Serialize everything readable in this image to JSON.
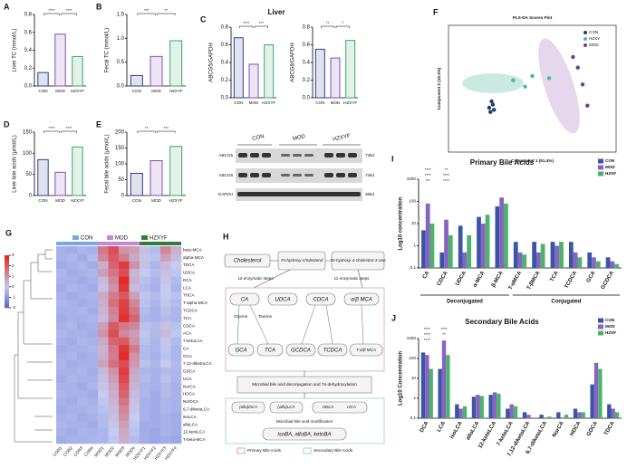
{
  "liver_title": "Liver",
  "blot": {
    "panel_groups": [
      "CON",
      "MOD",
      "HZXYF"
    ],
    "proteins": [
      "ABCG5",
      "ABCG8",
      "GAPDH"
    ],
    "sizes": [
      "73kd",
      "73kd",
      "36kd"
    ]
  },
  "pathway": {
    "panel": "H",
    "top": [
      "Cholesterol",
      "7α-hydroxy-cholesterol",
      "7α-hydroxy-4-cholesten-3-one"
    ],
    "steps": [
      "12 enzymatic steps",
      "11 enzymatic steps"
    ],
    "primary": [
      "CA",
      "UDCA",
      "CDCA",
      "α/β MCA"
    ],
    "conjugated": [
      "GCA",
      "TCA",
      "GCDCA",
      "TCDCA",
      "T-α/β MCA"
    ],
    "reagents": [
      "Glycine",
      "Taurine"
    ],
    "deconjugation": "Microbial bile acid deconjugation and 7α-dehydroxylation",
    "secondary": [
      "(allo)DCA",
      "(allo)LCA",
      "HDCA",
      "HCA"
    ],
    "modification": "Microbial bile acid modification",
    "modified": "isoBA, alloBA, ketoBA",
    "legend": [
      "Primary Bile Acids",
      "Secondary Bile Acids"
    ]
  },
  "chart_data": [
    {
      "type": "bar",
      "panel": "A",
      "ylabel": "Liver TC (mmol/L)",
      "categories": [
        "CON",
        "MOD",
        "HZXYF"
      ],
      "values": [
        0.15,
        0.58,
        0.33
      ],
      "colors": [
        "#2d3f8f",
        "#8250b8",
        "#3aa86b"
      ],
      "ylim": [
        0,
        0.8
      ],
      "yticks": [
        {
          "value": 0,
          "label": "0.0"
        },
        0.2,
        0.4,
        0.6,
        0.8
      ],
      "annotations": [
        "****",
        "****"
      ]
    },
    {
      "type": "bar",
      "panel": "B",
      "ylabel": "Fecal TC (mmol/L)",
      "categories": [
        "CON",
        "MOD",
        "HZXYF"
      ],
      "values": [
        0.22,
        0.62,
        0.95
      ],
      "colors": [
        "#2d3f8f",
        "#8250b8",
        "#3aa86b"
      ],
      "ylim": [
        0,
        1.5
      ],
      "yticks": [
        {
          "value": 0,
          "label": "0.0"
        },
        0.5,
        {
          "value": 1,
          "label": "1.0"
        },
        1.5
      ],
      "annotations": [
        "***",
        "**"
      ]
    },
    {
      "type": "bar",
      "panel": "C",
      "ylabel": "ABCG5/GAPDH",
      "categories": [
        "CON",
        "MOD",
        "HZXYF"
      ],
      "values": [
        0.68,
        0.38,
        0.6
      ],
      "colors": [
        "#2d3f8f",
        "#8250b8",
        "#3aa86b"
      ],
      "ylim": [
        0,
        0.8
      ],
      "yticks": [
        {
          "value": 0,
          "label": "0.0"
        },
        0.2,
        0.4,
        0.6,
        0.8
      ],
      "annotations": [
        "****",
        "***"
      ]
    },
    {
      "type": "bar",
      "ylabel": "ABCG8/GAPDH",
      "categories": [
        "CON",
        "MOD",
        "HZXYF"
      ],
      "values": [
        0.55,
        0.45,
        0.65
      ],
      "colors": [
        "#2d3f8f",
        "#8250b8",
        "#3aa86b"
      ],
      "ylim": [
        0,
        0.8
      ],
      "yticks": [
        {
          "value": 0,
          "label": "0.0"
        },
        0.2,
        0.4,
        0.6,
        0.8
      ],
      "annotations": [
        "**",
        "*"
      ]
    },
    {
      "type": "bar",
      "panel": "D",
      "ylabel": "Liver bile acids (μmol/L)",
      "categories": [
        "CON",
        "MOD",
        "HZXYF"
      ],
      "values": [
        85,
        55,
        115
      ],
      "colors": [
        "#2d3f8f",
        "#8250b8",
        "#3aa86b"
      ],
      "ylim": [
        0,
        150
      ],
      "yticks": [
        0,
        50,
        100,
        150
      ],
      "annotations": [
        "****",
        "****"
      ]
    },
    {
      "type": "bar",
      "panel": "E",
      "ylabel": "Fecal bile acids (μmol/L)",
      "categories": [
        "CON",
        "MOD",
        "HZXYF"
      ],
      "values": [
        70,
        110,
        155
      ],
      "colors": [
        "#2d3f8f",
        "#8250b8",
        "#3aa86b"
      ],
      "ylim": [
        0,
        200
      ],
      "yticks": [
        0,
        50,
        100,
        150,
        200
      ],
      "annotations": [
        "**",
        "***"
      ]
    },
    {
      "type": "scatter",
      "panel": "F",
      "title": "PLS-DA Scores Plot",
      "xlabel": "Component 1 (51.4%)",
      "ylabel": "Component 2 (10.3%)",
      "xlim": [
        -3,
        4
      ],
      "ylim": [
        -3,
        3
      ],
      "legend": "upper right",
      "series": [
        {
          "name": "CON",
          "color": "#1f3b73",
          "x": [
            -1.2,
            -1.3,
            -1.1,
            -1.25,
            -1.15
          ],
          "values": [
            -0.6,
            -0.9,
            -1.0,
            -1.1,
            -0.75
          ]
        },
        {
          "name": "HZXY",
          "color": "#4fb89a",
          "x": [
            -0.3,
            0.5,
            1.2,
            0.2
          ],
          "values": [
            0.4,
            0.6,
            0.5,
            0.1
          ]
        },
        {
          "name": "MOD",
          "color": "#6a3d8f",
          "x": [
            2.2,
            2.6,
            2.8,
            2.4
          ],
          "values": [
            1.5,
            0.2,
            -0.8,
            1.0
          ]
        }
      ]
    },
    {
      "type": "heatmap",
      "panel": "G",
      "rows": [
        "beta-MCA",
        "alpha-MCA",
        "TDCA",
        "UDCA",
        "DCA",
        "LCA",
        "THCA",
        "T-alpha-MCA",
        "TCDCA",
        "TCA",
        "CDCA",
        "ACA",
        "7-ketoLCA",
        "CA",
        "GCA",
        "7,12-diketoLCA",
        "GDCA",
        "UCA",
        "NorCA",
        "HDCA",
        "NorDCA",
        "6,7-diketoLCA",
        "isoLCA",
        "alloLCA",
        "12-ketoLCA",
        "T-beta-MCA"
      ],
      "columns": [
        "CON1",
        "CON2",
        "CON3",
        "CON4",
        "MOD1",
        "MOD2",
        "MOD3",
        "MOD4",
        "HZXYF1",
        "HZXYF2",
        "HZXYF3",
        "HZXYF4"
      ],
      "column_groups": [
        {
          "name": "CON",
          "color": "#7ba7e0"
        },
        {
          "name": "MOD",
          "color": "#c38ad3"
        },
        {
          "name": "HZXYF",
          "color": "#2f7d3a"
        }
      ],
      "clim": [
        -2,
        3
      ],
      "colormap": [
        "#4f63d2",
        "#c5cbf0",
        "#e3211c"
      ],
      "colorbar_ticks": [
        3,
        2,
        1,
        0,
        -1,
        -2
      ],
      "values": [
        [
          -0.5,
          -0.6,
          -0.4,
          -0.5,
          1.5,
          2.2,
          1.0,
          0.8,
          0.2,
          -0.3,
          1.2,
          0.5
        ],
        [
          -0.5,
          -0.4,
          -0.6,
          -0.3,
          1.2,
          2.0,
          1.4,
          0.6,
          0.1,
          -0.2,
          0.8,
          0.3
        ],
        [
          -0.6,
          -0.5,
          -0.4,
          -0.6,
          0.5,
          1.8,
          2.5,
          1.0,
          0.2,
          -0.4,
          0.3,
          0.0
        ],
        [
          -0.4,
          -0.6,
          -0.5,
          -0.4,
          0.8,
          1.5,
          2.2,
          0.4,
          0.0,
          -0.3,
          0.2,
          -0.1
        ],
        [
          -0.5,
          -0.5,
          -0.6,
          -0.5,
          0.3,
          1.2,
          2.8,
          0.5,
          -0.2,
          -0.4,
          0.1,
          -0.3
        ],
        [
          -0.6,
          -0.4,
          -0.5,
          -0.6,
          0.2,
          1.0,
          2.6,
          0.3,
          -0.3,
          -0.5,
          0.0,
          -0.4
        ],
        [
          -0.5,
          -0.6,
          -0.5,
          -0.4,
          0.6,
          1.4,
          2.0,
          0.8,
          -0.1,
          -0.3,
          0.0,
          -0.2
        ],
        [
          -0.4,
          -0.5,
          -0.6,
          -0.5,
          0.5,
          1.6,
          2.4,
          1.2,
          -0.2,
          -0.4,
          -0.1,
          -0.3
        ],
        [
          -0.5,
          -0.5,
          -0.4,
          -0.6,
          0.4,
          1.3,
          2.5,
          1.5,
          -0.3,
          -0.5,
          -0.2,
          -0.4
        ],
        [
          -0.6,
          -0.5,
          -0.5,
          -0.4,
          0.3,
          1.2,
          2.7,
          1.8,
          -0.4,
          -0.5,
          -0.3,
          -0.4
        ],
        [
          -0.5,
          -0.4,
          -0.6,
          -0.5,
          0.8,
          2.0,
          1.5,
          1.2,
          -0.2,
          -0.3,
          0.2,
          -0.2
        ],
        [
          -0.4,
          -0.5,
          -0.5,
          -0.6,
          1.0,
          2.2,
          1.2,
          0.8,
          -0.1,
          -0.3,
          0.3,
          -0.1
        ],
        [
          -0.5,
          -0.6,
          -0.4,
          -0.5,
          0.6,
          1.8,
          2.0,
          1.0,
          -0.2,
          -0.4,
          0.1,
          -0.3
        ],
        [
          -0.6,
          -0.5,
          -0.5,
          -0.4,
          0.4,
          1.5,
          2.6,
          1.4,
          -0.3,
          -0.4,
          -0.1,
          -0.4
        ],
        [
          -0.5,
          -0.4,
          -0.6,
          -0.5,
          0.5,
          1.4,
          2.8,
          1.0,
          -0.3,
          -0.5,
          -0.2,
          -0.4
        ],
        [
          -0.4,
          -0.6,
          -0.5,
          -0.5,
          0.7,
          1.6,
          2.2,
          0.9,
          -0.2,
          -0.4,
          0.0,
          -0.3
        ],
        [
          -0.5,
          -0.5,
          -0.4,
          -0.6,
          0.3,
          1.0,
          2.5,
          0.6,
          -0.4,
          -0.5,
          -0.3,
          -0.4
        ],
        [
          -0.6,
          -0.4,
          -0.5,
          -0.5,
          0.2,
          0.8,
          2.3,
          0.5,
          -0.3,
          -0.5,
          -0.2,
          -0.4
        ],
        [
          -0.5,
          -0.5,
          -0.6,
          -0.4,
          0.1,
          0.6,
          2.0,
          0.4,
          -0.4,
          -0.5,
          -0.3,
          -0.5
        ],
        [
          -0.4,
          -0.5,
          -0.5,
          -0.6,
          0.0,
          0.5,
          1.8,
          0.3,
          -0.4,
          -0.6,
          -0.3,
          -0.5
        ],
        [
          -0.5,
          -0.6,
          -0.4,
          -0.5,
          -0.1,
          0.4,
          1.5,
          0.2,
          -0.5,
          -0.6,
          -0.4,
          -0.5
        ],
        [
          -0.6,
          -0.5,
          -0.5,
          -0.4,
          -0.2,
          0.3,
          1.2,
          0.1,
          -0.5,
          -0.6,
          -0.4,
          -0.5
        ],
        [
          -0.5,
          -0.4,
          -0.6,
          -0.5,
          -0.3,
          0.2,
          1.0,
          0.0,
          -0.5,
          -0.6,
          -0.5,
          -0.6
        ],
        [
          -0.4,
          -0.5,
          -0.5,
          -0.6,
          -0.3,
          0.1,
          0.8,
          -0.1,
          -0.6,
          -0.6,
          -0.5,
          -0.6
        ],
        [
          -0.5,
          -0.6,
          -0.4,
          -0.5,
          -0.4,
          0.0,
          0.6,
          -0.2,
          -0.6,
          -0.7,
          -0.5,
          -0.6
        ],
        [
          -0.6,
          -0.5,
          -0.5,
          -0.4,
          -0.4,
          -0.1,
          0.5,
          -0.3,
          -0.6,
          -0.7,
          -0.6,
          -0.7
        ]
      ]
    },
    {
      "type": "grouped_bar",
      "panel": "I",
      "title": "Primary Bile Acids",
      "ylabel": "Log10 concentration",
      "log": true,
      "legend": "upper right",
      "categories": [
        "CA",
        "CDCA",
        "UDCA",
        "α-MCA",
        "β-MCA",
        "T-αMCA",
        "T-βMCA",
        "TCA",
        "TCDCA",
        "GCA",
        "GCDCA"
      ],
      "category_colors": [
        "#e02020",
        "#e02020",
        "#111111",
        "#111111",
        "#e02020",
        "#111111",
        "#111111",
        "#111111",
        "#111111",
        "#111111",
        "#111111"
      ],
      "groups": [
        {
          "label": "Deconjugated",
          "from": "CA",
          "to": "β-MCA"
        },
        {
          "label": "Conjugated",
          "from": "T-αMCA",
          "to": "GCDCA"
        }
      ],
      "ylim": [
        0.1,
        1000
      ],
      "yticks": [
        0.1,
        1,
        10,
        100,
        1000
      ],
      "annotations": [
        "****",
        "****",
        "***",
        "**",
        "****",
        "****"
      ],
      "series": [
        {
          "name": "CON",
          "color": "#3b55a5",
          "values": [
            5,
            0.5,
            8,
            20,
            60,
            1.5,
            1.5,
            1.5,
            1.5,
            0.5,
            0.3
          ]
        },
        {
          "name": "MOD",
          "color": "#8a62c4",
          "values": [
            80,
            15,
            0.5,
            10,
            150,
            0.5,
            0.5,
            1,
            0.5,
            0.3,
            0.2
          ]
        },
        {
          "name": "HZXF",
          "color": "#4bb36a",
          "values": [
            10,
            3,
            3,
            25,
            80,
            0.4,
            1.2,
            1.5,
            0.3,
            0.2,
            0.15
          ]
        }
      ]
    },
    {
      "type": "grouped_bar",
      "panel": "J",
      "title": "Secondary Bile Acids",
      "ylabel": "Log10 Concentration",
      "log": true,
      "legend": "upper right",
      "categories": [
        "DCA",
        "LCA",
        "isoLCA",
        "alloLCA",
        "12-ketoLCA",
        "7-ketoLCA",
        "7,12-diketoLCA",
        "6,7-diketoLCA",
        "NorCA",
        "HDCA",
        "GDCA",
        "TDCA"
      ],
      "category_colors": [
        "#e02020",
        "#e02020",
        "#111111",
        "#111111",
        "#111111",
        "#111111",
        "#111111",
        "#111111",
        "#111111",
        "#111111",
        "#111111",
        "#111111"
      ],
      "ylim": [
        0.1,
        1000
      ],
      "yticks": [
        0.1,
        1,
        10,
        100,
        1000
      ],
      "annotations": [
        "****",
        "****",
        "****",
        "****",
        "**"
      ],
      "series": [
        {
          "name": "CON",
          "color": "#3b55a5",
          "values": [
            200,
            30,
            0.5,
            1.2,
            1.5,
            0.3,
            0.2,
            0.15,
            0.2,
            0.3,
            5,
            0.5
          ]
        },
        {
          "name": "MOD",
          "color": "#8a62c4",
          "values": [
            150,
            800,
            0.3,
            1.5,
            2,
            0.5,
            0.15,
            0.1,
            0.1,
            0.2,
            60,
            0.3
          ]
        },
        {
          "name": "HZXF",
          "color": "#4bb36a",
          "values": [
            30,
            150,
            0.4,
            1.3,
            1.7,
            0.4,
            0.1,
            0.12,
            0.15,
            0.2,
            30,
            0.2
          ]
        }
      ]
    }
  ]
}
